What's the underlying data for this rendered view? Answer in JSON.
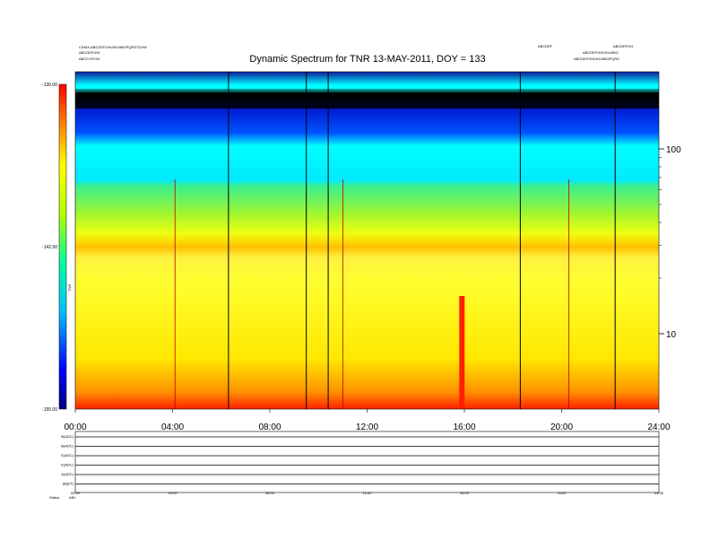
{
  "chart_data": {
    "type": "heatmap",
    "title": "Dynamic Spectrum for TNR 13-MAY-2011, DOY = 133",
    "xlim": [
      0,
      24
    ],
    "x_ticks": [
      "00:00",
      "04:00",
      "08:00",
      "12:00",
      "16:00",
      "20:00",
      "24:00"
    ],
    "x_tick_values": [
      0,
      4,
      8,
      12,
      16,
      20,
      24
    ],
    "y_scale": "log",
    "y_right_ticks": [
      {
        "value": 100,
        "label": "100"
      },
      {
        "value": 10,
        "label": "10"
      }
    ],
    "colorbar": {
      "label": "TNR",
      "range": [
        -155.0,
        -130.0
      ],
      "ticks": [
        {
          "value": -130.0,
          "label": "-130.00"
        },
        {
          "value": -142.5,
          "label": "-142.50"
        },
        {
          "value": -155.0,
          "label": "-155.00"
        }
      ]
    },
    "vertical_lines_hours": [
      6.3,
      9.5,
      10.4,
      18.3,
      22.2
    ],
    "thin_lines_hours": [
      4.1,
      11.0,
      20.3
    ],
    "burst_hours": [
      15.9
    ],
    "bottom_panel": {
      "rows": [
        "B(ADC)",
        "B(ADC)",
        "E(ADC)",
        "E(ADC)",
        "A(ADC)",
        "|B|(nT)"
      ],
      "x_ticks": [
        "00:00",
        "04:00",
        "08:00",
        "12:00",
        "16:00",
        "20:00",
        "24:00"
      ],
      "footer_left": [
        "Status",
        "ABJ"
      ]
    }
  }
}
